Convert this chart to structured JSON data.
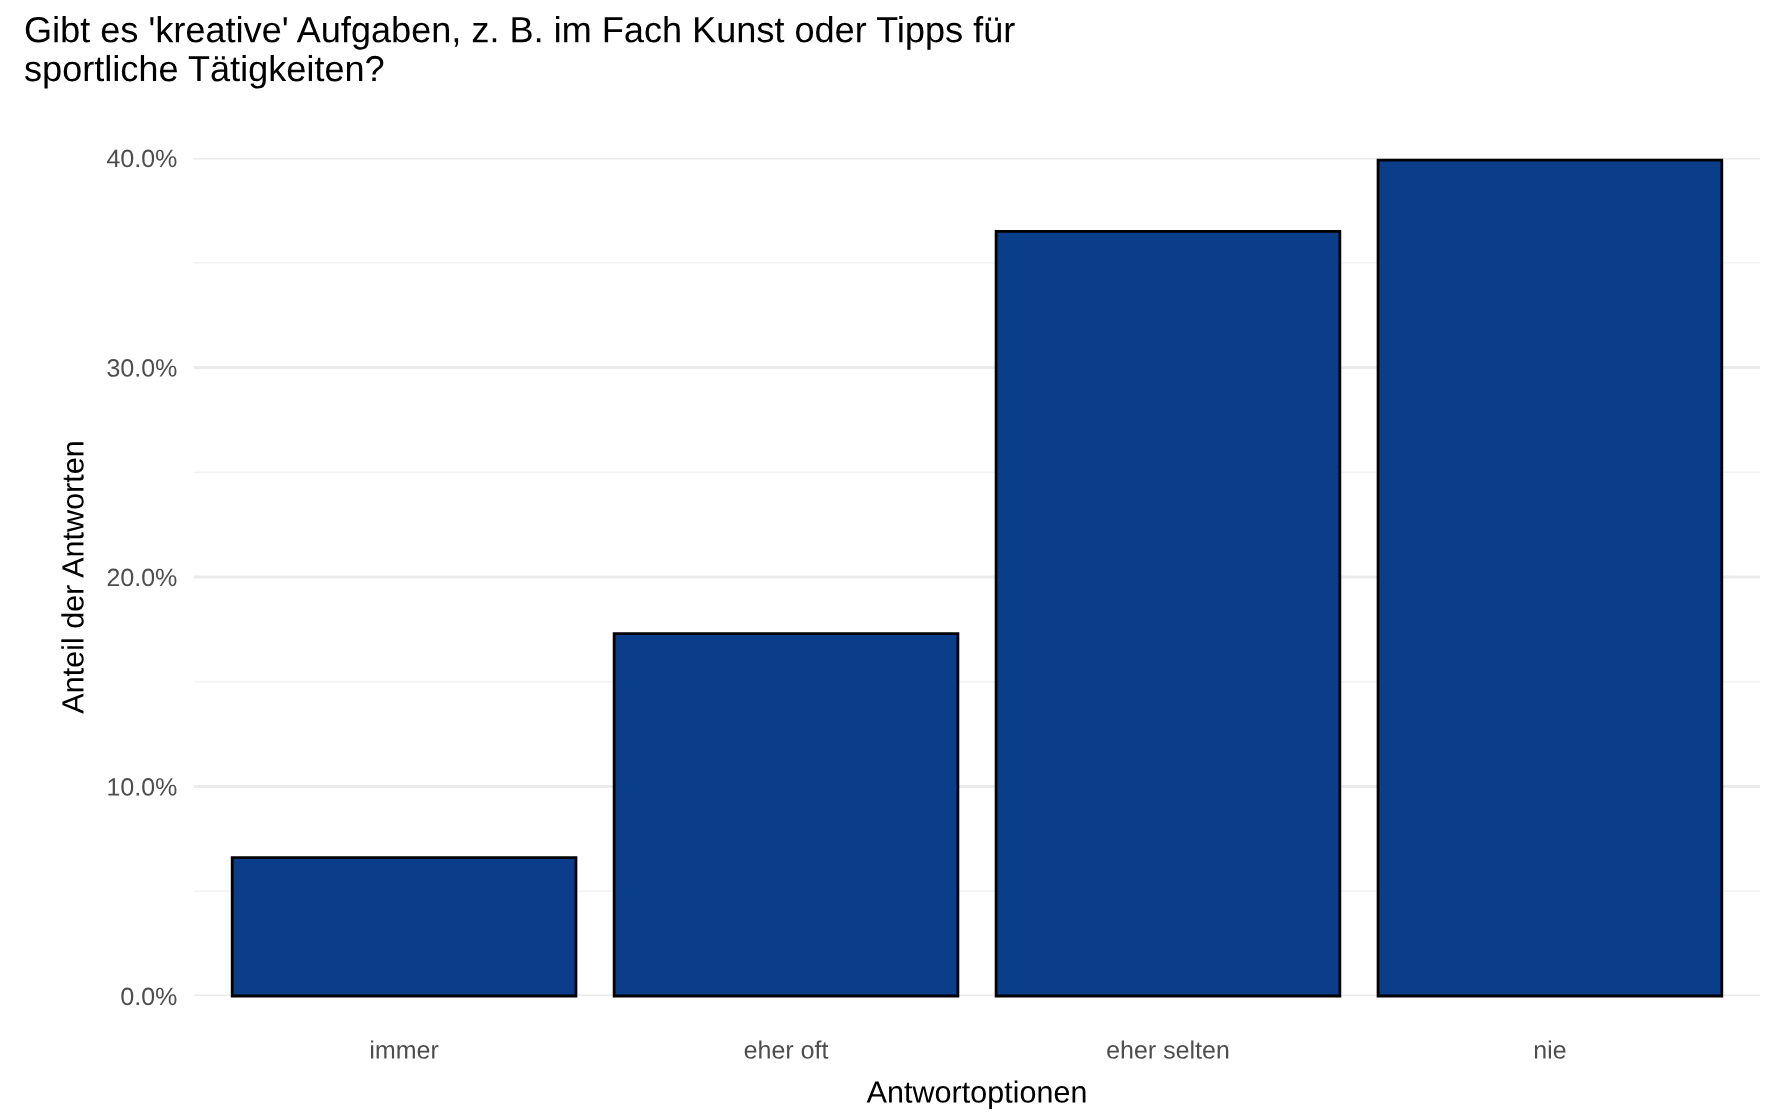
{
  "chart_data": {
    "type": "bar",
    "title": "Gibt es 'kreative' Aufgaben, z. B. im Fach Kunst oder Tipps für\nsportliche Tätigkeiten?",
    "xlabel": "Antwortoptionen",
    "ylabel": "Anteil der Antworten",
    "categories": [
      "immer",
      "eher oft",
      "eher selten",
      "nie"
    ],
    "values": [
      6.6,
      17.3,
      36.5,
      39.9
    ],
    "color": "#0a3d8a",
    "ylim": [
      0,
      40
    ],
    "yticks": [
      {
        "value": 0,
        "label": "0.0%"
      },
      {
        "value": 10,
        "label": "10.0%"
      },
      {
        "value": 20,
        "label": "20.0%"
      },
      {
        "value": 30,
        "label": "30.0%"
      },
      {
        "value": 40,
        "label": "40.0%"
      }
    ],
    "grid": "y"
  }
}
